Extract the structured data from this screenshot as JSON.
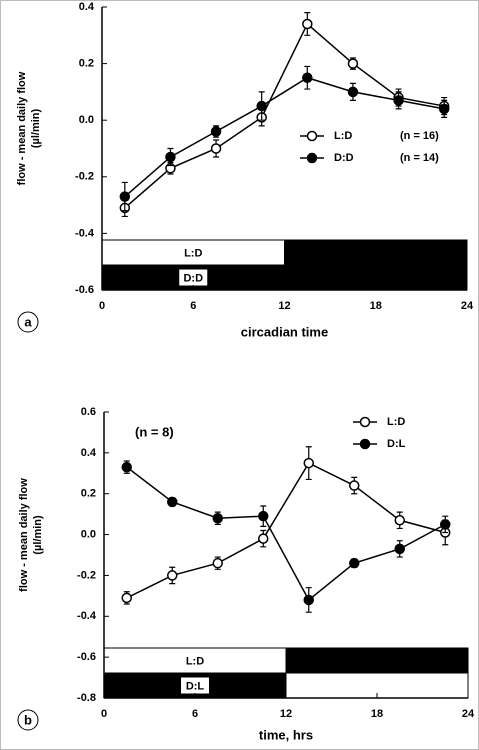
{
  "chart_data": [
    {
      "type": "line",
      "panel": "a",
      "xlabel": "circadian time",
      "ylabel": [
        "flow - mean daily flow",
        "(µl/min)"
      ],
      "x": [
        1.5,
        4.5,
        7.5,
        10.5,
        13.5,
        16.5,
        19.5,
        22.5
      ],
      "xlim": [
        0,
        24
      ],
      "xticks": [
        0,
        6,
        12,
        18,
        24
      ],
      "ylim": [
        -0.6,
        0.4
      ],
      "yticks": [
        -0.6,
        -0.4,
        -0.2,
        {
          "value": 0,
          "label": "0.0"
        },
        0.2,
        0.4
      ],
      "series": [
        {
          "name": "L:D",
          "note": "(n = 16)",
          "color": "#000000",
          "marker_fill": "#ffffff",
          "values": [
            -0.31,
            -0.17,
            -0.1,
            0.01,
            0.34,
            0.2,
            0.08,
            0.05
          ],
          "errors": [
            0.03,
            0.02,
            0.03,
            0.03,
            0.04,
            0.02,
            0.03,
            0.03
          ]
        },
        {
          "name": "D:D",
          "note": "(n = 14)",
          "color": "#000000",
          "marker_fill": "#000000",
          "values": [
            -0.27,
            -0.13,
            -0.04,
            0.05,
            0.15,
            0.1,
            0.07,
            0.04
          ],
          "errors": [
            0.05,
            0.03,
            0.02,
            0.05,
            0.04,
            0.03,
            0.03,
            0.03
          ]
        }
      ],
      "light_bars": [
        {
          "label": "L:D",
          "segments": [
            {
              "start": 0,
              "end": 12,
              "color": "#ffffff"
            },
            {
              "start": 12,
              "end": 24,
              "color": "#000000"
            }
          ]
        },
        {
          "label": "D:D",
          "segments": [
            {
              "start": 0,
              "end": 24,
              "color": "#000000"
            }
          ]
        }
      ]
    },
    {
      "type": "line",
      "panel": "b",
      "xlabel": "time, hrs",
      "ylabel": [
        "flow - mean daily flow",
        "(µl/min)"
      ],
      "annotation": "(n = 8)",
      "x": [
        1.5,
        4.5,
        7.5,
        10.5,
        13.5,
        16.5,
        19.5,
        22.5
      ],
      "xlim": [
        0,
        24
      ],
      "xticks": [
        0,
        6,
        12,
        18,
        24
      ],
      "ylim": [
        -0.8,
        0.6
      ],
      "yticks": [
        -0.8,
        -0.6,
        -0.4,
        -0.2,
        {
          "value": 0,
          "label": "0.0"
        },
        0.2,
        0.4,
        0.6
      ],
      "series": [
        {
          "name": "L:D",
          "color": "#000000",
          "marker_fill": "#ffffff",
          "values": [
            -0.31,
            -0.2,
            -0.14,
            -0.02,
            0.35,
            0.24,
            0.07,
            0.01
          ],
          "errors": [
            0.03,
            0.04,
            0.03,
            0.04,
            0.08,
            0.04,
            0.04,
            0.06
          ]
        },
        {
          "name": "D:L",
          "color": "#000000",
          "marker_fill": "#000000",
          "values": [
            0.33,
            0.16,
            0.08,
            0.09,
            -0.32,
            -0.14,
            -0.07,
            0.05
          ],
          "errors": [
            0.03,
            0.02,
            0.03,
            0.05,
            0.06,
            0.02,
            0.04,
            0.04
          ]
        }
      ],
      "light_bars": [
        {
          "label": "L:D",
          "segments": [
            {
              "start": 0,
              "end": 12,
              "color": "#ffffff"
            },
            {
              "start": 12,
              "end": 24,
              "color": "#000000"
            }
          ]
        },
        {
          "label": "D:L",
          "segments": [
            {
              "start": 0,
              "end": 12,
              "color": "#000000"
            },
            {
              "start": 12,
              "end": 24,
              "color": "#ffffff"
            }
          ]
        }
      ]
    }
  ]
}
